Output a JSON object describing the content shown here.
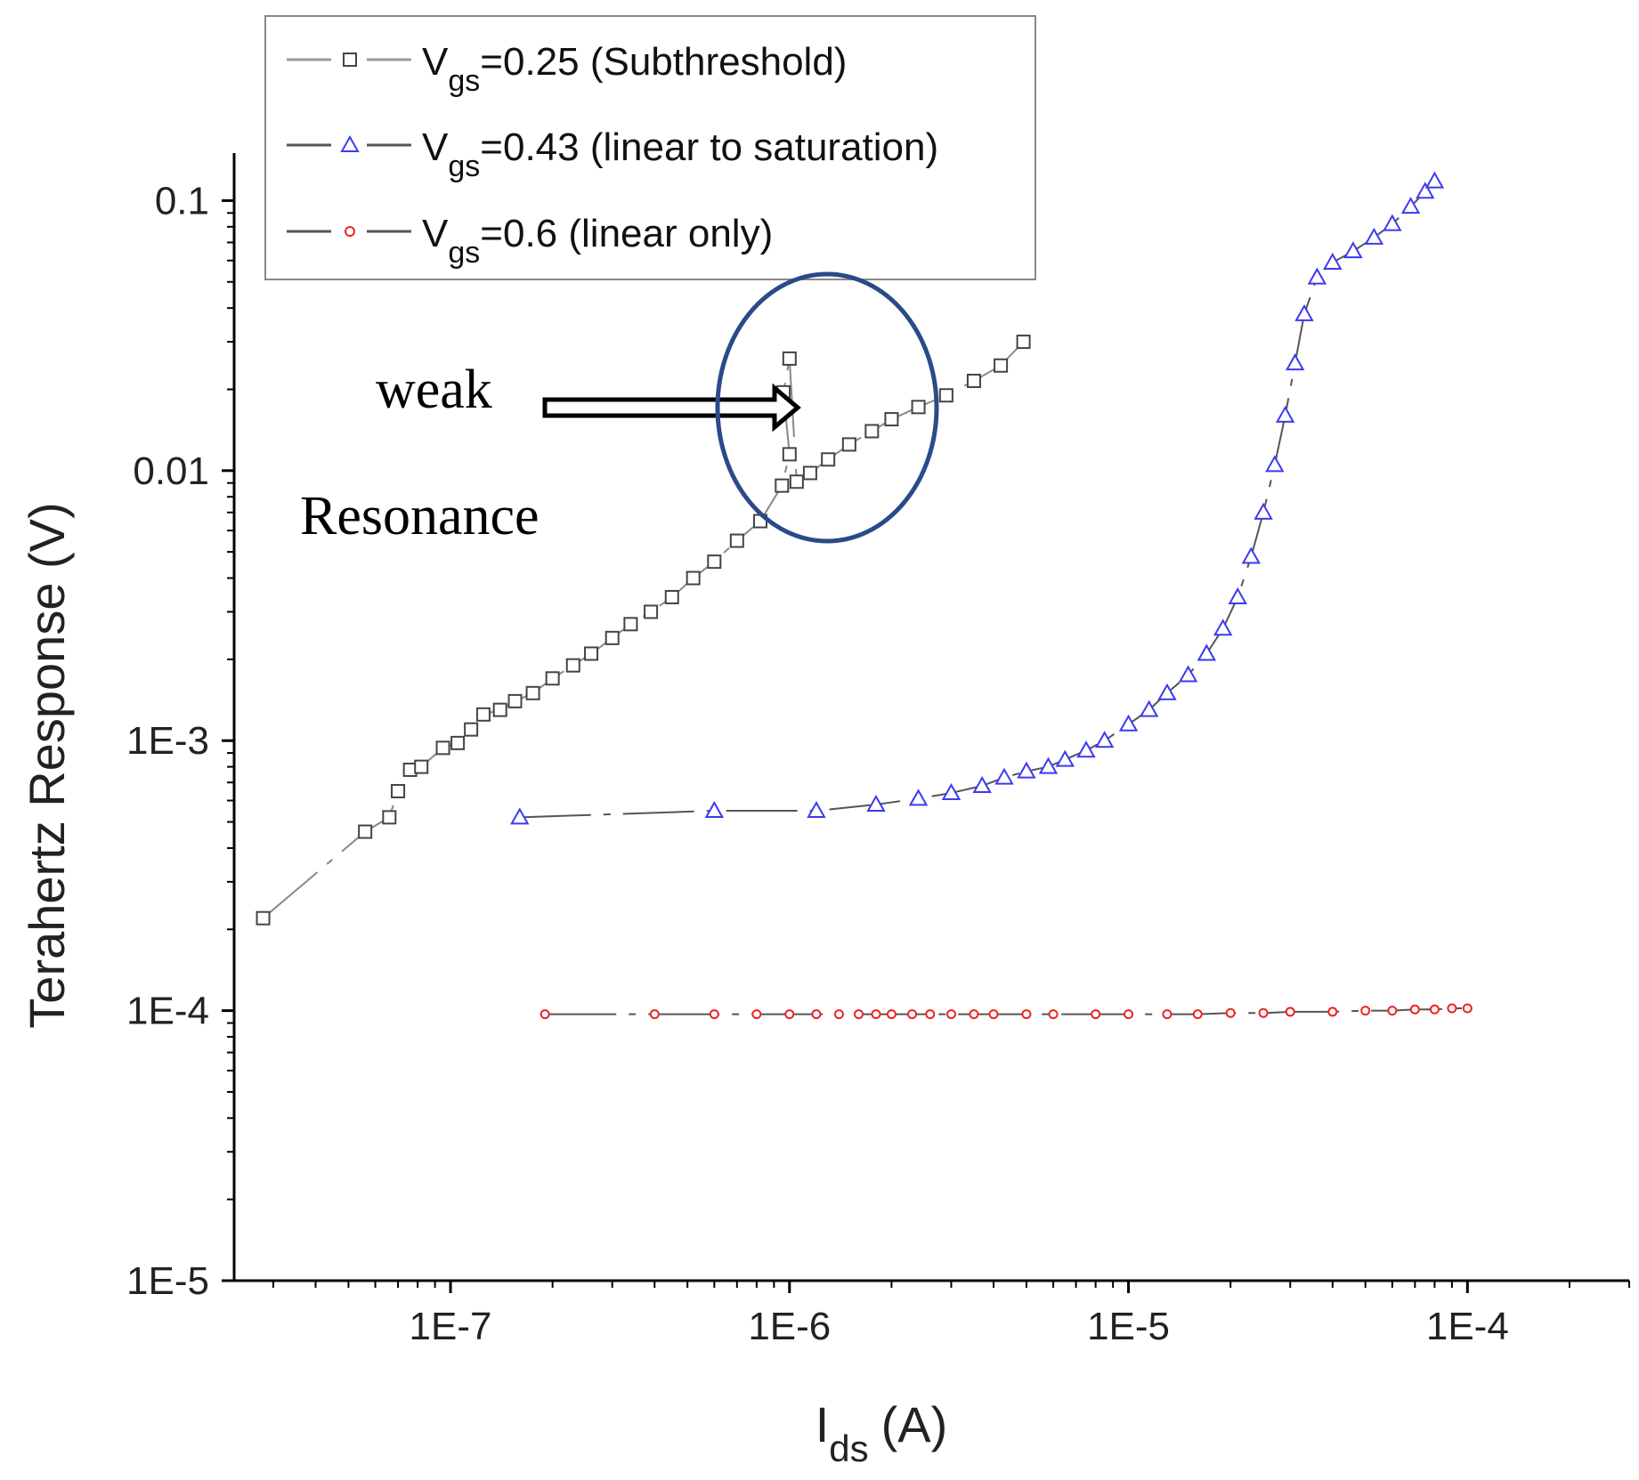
{
  "chart_data": {
    "type": "scatter",
    "x_scale": "log",
    "y_scale": "log",
    "xlabel_main": "I",
    "xlabel_sub": "ds",
    "xlabel_unit": "(A)",
    "ylabel": "Terahertz Response (V)",
    "xlim": [
      2.3e-08,
      0.0003
    ],
    "ylim": [
      1e-05,
      0.15
    ],
    "x_ticks": [
      {
        "value": 1e-07,
        "label": "1E-7"
      },
      {
        "value": 1e-06,
        "label": "1E-6"
      },
      {
        "value": 1e-05,
        "label": "1E-5"
      },
      {
        "value": 0.0001,
        "label": "1E-4"
      }
    ],
    "y_ticks": [
      {
        "value": 1e-05,
        "label": "1E-5"
      },
      {
        "value": 0.0001,
        "label": "1E-4"
      },
      {
        "value": 0.001,
        "label": "1E-3"
      },
      {
        "value": 0.01,
        "label": "0.01"
      },
      {
        "value": 0.1,
        "label": "0.1"
      }
    ],
    "series": [
      {
        "name": "V_gs=0.25 (Subthreshold)",
        "legend_symbol": "V",
        "legend_sub": "gs",
        "legend_rest": "=0.25 (Subthreshold)",
        "marker": "square",
        "color": "#444444",
        "line_color": "#888888",
        "points": [
          [
            2.8e-08,
            0.00022
          ],
          [
            5.6e-08,
            0.00046
          ],
          [
            6.6e-08,
            0.00052
          ],
          [
            7e-08,
            0.00065
          ],
          [
            7.6e-08,
            0.00078
          ],
          [
            8.2e-08,
            0.0008
          ],
          [
            9.5e-08,
            0.00094
          ],
          [
            1.05e-07,
            0.00098
          ],
          [
            1.15e-07,
            0.0011
          ],
          [
            1.25e-07,
            0.00125
          ],
          [
            1.4e-07,
            0.0013
          ],
          [
            1.55e-07,
            0.0014
          ],
          [
            1.75e-07,
            0.0015
          ],
          [
            2e-07,
            0.0017
          ],
          [
            2.3e-07,
            0.0019
          ],
          [
            2.6e-07,
            0.0021
          ],
          [
            3e-07,
            0.0024
          ],
          [
            3.4e-07,
            0.0027
          ],
          [
            3.9e-07,
            0.003
          ],
          [
            4.5e-07,
            0.0034
          ],
          [
            5.2e-07,
            0.004
          ],
          [
            6e-07,
            0.0046
          ],
          [
            7e-07,
            0.0055
          ],
          [
            8.2e-07,
            0.0065
          ],
          [
            9.5e-07,
            0.0088
          ],
          [
            1e-06,
            0.0115
          ],
          [
            9.6e-07,
            0.0195
          ],
          [
            1e-06,
            0.026
          ],
          [
            1.05e-06,
            0.0091
          ],
          [
            1.15e-06,
            0.0098
          ],
          [
            1.3e-06,
            0.011
          ],
          [
            1.5e-06,
            0.0125
          ],
          [
            1.75e-06,
            0.014
          ],
          [
            2e-06,
            0.0155
          ],
          [
            2.4e-06,
            0.0172
          ],
          [
            2.9e-06,
            0.019
          ],
          [
            3.5e-06,
            0.0215
          ],
          [
            4.2e-06,
            0.0245
          ],
          [
            4.9e-06,
            0.03
          ]
        ]
      },
      {
        "name": "V_gs=0.43 (linear to saturation)",
        "legend_symbol": "V",
        "legend_sub": "gs",
        "legend_rest": "=0.43 (linear to saturation)",
        "marker": "triangle",
        "color": "#3a3af0",
        "line_color": "#555555",
        "points": [
          [
            1.6e-07,
            0.00052
          ],
          [
            6e-07,
            0.00055
          ],
          [
            1.2e-06,
            0.00055
          ],
          [
            1.8e-06,
            0.00058
          ],
          [
            2.4e-06,
            0.00061
          ],
          [
            3e-06,
            0.00064
          ],
          [
            3.7e-06,
            0.00068
          ],
          [
            4.3e-06,
            0.00073
          ],
          [
            5e-06,
            0.00077
          ],
          [
            5.8e-06,
            0.0008
          ],
          [
            6.5e-06,
            0.00085
          ],
          [
            7.5e-06,
            0.00092
          ],
          [
            8.5e-06,
            0.001
          ],
          [
            1e-05,
            0.00115
          ],
          [
            1.15e-05,
            0.0013
          ],
          [
            1.3e-05,
            0.0015
          ],
          [
            1.5e-05,
            0.00175
          ],
          [
            1.7e-05,
            0.0021
          ],
          [
            1.9e-05,
            0.0026
          ],
          [
            2.1e-05,
            0.0034
          ],
          [
            2.3e-05,
            0.0048
          ],
          [
            2.5e-05,
            0.007
          ],
          [
            2.7e-05,
            0.0105
          ],
          [
            2.9e-05,
            0.016
          ],
          [
            3.1e-05,
            0.025
          ],
          [
            3.3e-05,
            0.038
          ],
          [
            3.6e-05,
            0.052
          ],
          [
            4e-05,
            0.059
          ],
          [
            4.6e-05,
            0.065
          ],
          [
            5.3e-05,
            0.073
          ],
          [
            6e-05,
            0.082
          ],
          [
            6.8e-05,
            0.095
          ],
          [
            7.5e-05,
            0.108
          ],
          [
            8e-05,
            0.118
          ]
        ]
      },
      {
        "name": "V_gs=0.6 (linear only)",
        "legend_symbol": "V",
        "legend_sub": "gs",
        "legend_rest": "=0.6 (linear only)",
        "marker": "circle",
        "color": "#ee2222",
        "line_color": "#555555",
        "points": [
          [
            1.9e-07,
            9.7e-05
          ],
          [
            4e-07,
            9.7e-05
          ],
          [
            6e-07,
            9.7e-05
          ],
          [
            8e-07,
            9.7e-05
          ],
          [
            1e-06,
            9.7e-05
          ],
          [
            1.2e-06,
            9.7e-05
          ],
          [
            1.4e-06,
            9.7e-05
          ],
          [
            1.6e-06,
            9.7e-05
          ],
          [
            1.8e-06,
            9.7e-05
          ],
          [
            2e-06,
            9.7e-05
          ],
          [
            2.3e-06,
            9.7e-05
          ],
          [
            2.6e-06,
            9.7e-05
          ],
          [
            3e-06,
            9.7e-05
          ],
          [
            3.5e-06,
            9.7e-05
          ],
          [
            4e-06,
            9.7e-05
          ],
          [
            5e-06,
            9.7e-05
          ],
          [
            6e-06,
            9.7e-05
          ],
          [
            8e-06,
            9.7e-05
          ],
          [
            1e-05,
            9.7e-05
          ],
          [
            1.3e-05,
            9.7e-05
          ],
          [
            1.6e-05,
            9.7e-05
          ],
          [
            2e-05,
            9.8e-05
          ],
          [
            2.5e-05,
            9.8e-05
          ],
          [
            3e-05,
            9.9e-05
          ],
          [
            4e-05,
            9.9e-05
          ],
          [
            5e-05,
            0.0001
          ],
          [
            6e-05,
            0.0001
          ],
          [
            7e-05,
            0.000101
          ],
          [
            8e-05,
            0.000101
          ],
          [
            9e-05,
            0.000102
          ],
          [
            0.0001,
            0.000102
          ]
        ]
      }
    ],
    "annotations": {
      "weak_label": "weak",
      "resonance_label": "Resonance",
      "ellipse_color": "#2a4a8a"
    }
  }
}
